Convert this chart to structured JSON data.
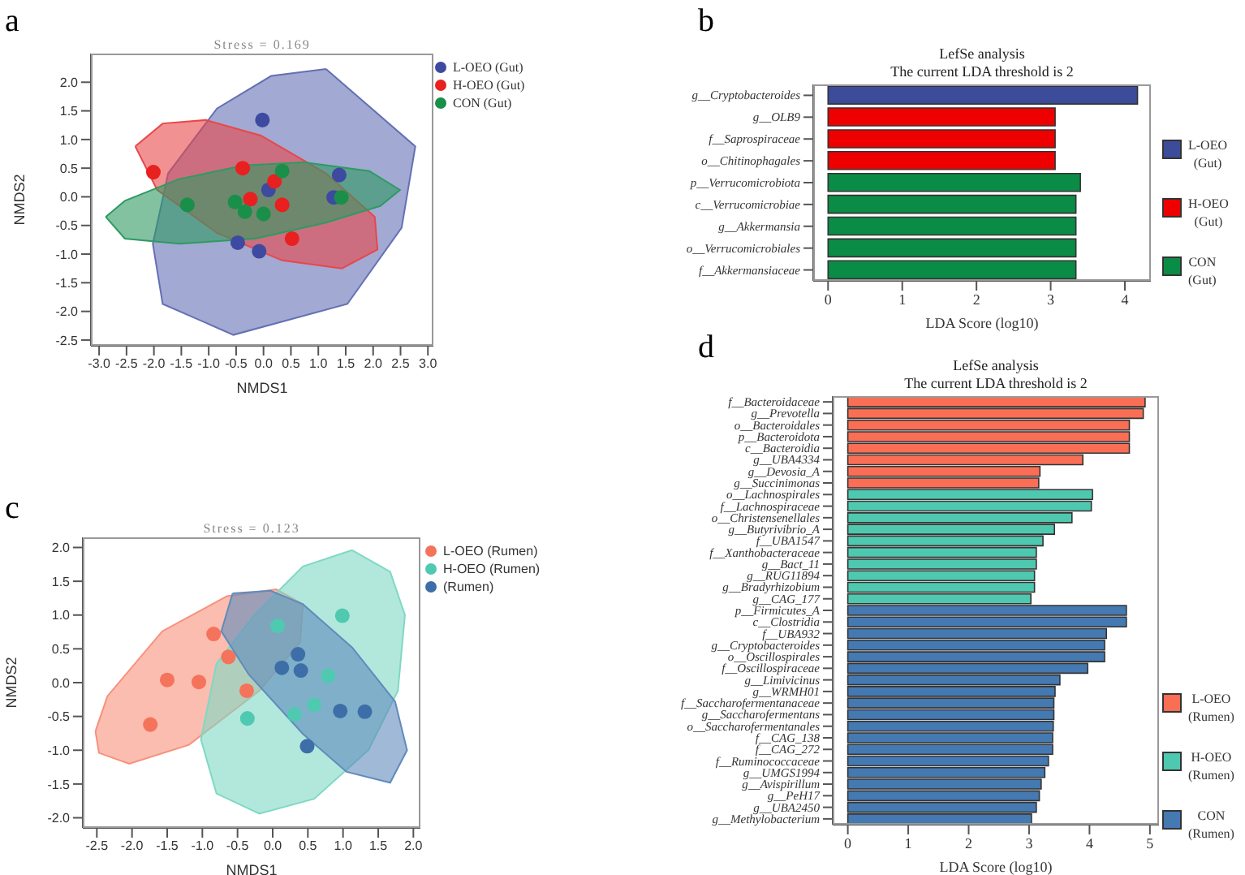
{
  "chart_data": [
    {
      "type": "scatter",
      "title": "Stress = 0.169",
      "xlabel": "NMDS1",
      "ylabel": "NMDS2",
      "annotations": [
        "a"
      ],
      "legend": "right",
      "marker": "circle",
      "xlim": [
        -3.15,
        3.1
      ],
      "xticks": [
        {
          "value": -3,
          "label": "-3.0"
        },
        {
          "value": -2.5,
          "label": "-2.5"
        },
        {
          "value": -2,
          "label": "-2.0"
        },
        {
          "value": -1.5,
          "label": "-1.5"
        },
        {
          "value": -1,
          "label": "-1.0"
        },
        {
          "value": -0.5,
          "label": "-0.5"
        },
        {
          "value": 0,
          "label": "0.0"
        },
        {
          "value": 0.5,
          "label": "0.5"
        },
        {
          "value": 1,
          "label": "1.0"
        },
        {
          "value": 1.5,
          "label": "1.5"
        },
        {
          "value": 2,
          "label": "2.0"
        },
        {
          "value": 2.5,
          "label": "2.5"
        },
        {
          "value": 3,
          "label": "3.0"
        }
      ],
      "ylim": [
        -2.6,
        2.5
      ],
      "yticks": [
        {
          "value": -2.5,
          "label": "-2.5"
        },
        {
          "value": -2,
          "label": "-2.0"
        },
        {
          "value": -1.5,
          "label": "-1.5"
        },
        {
          "value": -1,
          "label": "-1.0"
        },
        {
          "value": -0.5,
          "label": "-0.5"
        },
        {
          "value": 0,
          "label": "0.0"
        },
        {
          "value": 0.5,
          "label": "0.5"
        },
        {
          "value": 1,
          "label": "1.0"
        },
        {
          "value": 1.5,
          "label": "1.5"
        },
        {
          "value": 2,
          "label": "2.0"
        }
      ],
      "series": [
        {
          "type": "area",
          "marker": "none",
          "color": "#6470b4",
          "x": [
            1.14,
            2.77,
            2.52,
            1.53,
            -0.55,
            -1.84,
            -2.02,
            -1.74,
            -0.85,
            0.14,
            1.14
          ],
          "values": [
            2.23,
            0.88,
            -0.54,
            -1.87,
            -2.41,
            -1.87,
            -0.82,
            0.41,
            1.54,
            2.11,
            2.23
          ]
        },
        {
          "type": "area",
          "marker": "none",
          "color": "#e8474a",
          "x": [
            -2.34,
            -1.84,
            -1.05,
            -0.05,
            1.14,
            2.03,
            2.08,
            1.43,
            0.34,
            -0.85,
            -1.94,
            -2.34
          ],
          "values": [
            0.88,
            1.28,
            1.34,
            1.07,
            0.41,
            -0.35,
            -0.92,
            -1.25,
            -1.11,
            -0.63,
            0.12,
            0.88
          ]
        },
        {
          "type": "area",
          "marker": "none",
          "color": "#2e9a62",
          "x": [
            -2.88,
            -2.53,
            -1.54,
            -0.35,
            0.74,
            1.93,
            2.49,
            2.13,
            1.14,
            -0.15,
            -1.54,
            -2.53,
            -2.88
          ],
          "values": [
            -0.35,
            -0.07,
            0.31,
            0.55,
            0.6,
            0.45,
            0.12,
            -0.16,
            -0.45,
            -0.73,
            -0.82,
            -0.73,
            -0.35
          ]
        },
        {
          "name": "L-OEO (Gut)",
          "color": "#3d4aa0",
          "x": [
            -0.02,
            0.09,
            1.38,
            1.28,
            -0.47,
            -0.08
          ],
          "values": [
            1.34,
            0.12,
            0.38,
            -0.01,
            -0.8,
            -0.95
          ]
        },
        {
          "name": "H-OEO (Gut)",
          "color": "#e8201f",
          "x": [
            -2.01,
            -0.38,
            0.2,
            -0.24,
            0.34,
            0.52
          ],
          "values": [
            0.43,
            0.5,
            0.27,
            -0.04,
            -0.14,
            -0.73
          ]
        },
        {
          "name": "CON (Gut)",
          "color": "#1a8f4a",
          "x": [
            -1.39,
            -0.52,
            -0.34,
            0,
            0.34,
            1.42
          ],
          "values": [
            -0.14,
            -0.09,
            -0.26,
            -0.3,
            0.45,
            -0.01
          ]
        }
      ]
    },
    {
      "type": "bar",
      "orientation": "horizontal",
      "stacked": true,
      "title": "LefSe analysis",
      "subtitle": "The current LDA threshold is 2",
      "xlabel": "LDA Score (log10)",
      "annotations": [
        "b"
      ],
      "legend": "right",
      "categories": [
        "g__Cryptobacteroides",
        "g__OLB9",
        "f__Saprospiraceae",
        "o__Chitinophagales",
        "p__Verrucomicrobiota",
        "c__Verrucomicrobiae",
        "g__Akkermansia",
        "o__Verrucomicrobiales",
        "f__Akkermansiaceae"
      ],
      "xlim": [
        -0.2,
        4.35
      ],
      "xticks": [
        0,
        1,
        2,
        3,
        4
      ],
      "series": [
        {
          "name": "L-OEO (Gut)",
          "color": "#3c4b9a",
          "values": [
            4.17,
            null,
            null,
            null,
            null,
            null,
            null,
            null,
            null
          ]
        },
        {
          "name": "H-OEO (Gut)",
          "color": "#ee0000",
          "values": [
            null,
            3.06,
            3.06,
            3.06,
            null,
            null,
            null,
            null,
            null
          ]
        },
        {
          "name": "CON (Gut)",
          "color": "#0b8c46",
          "values": [
            null,
            null,
            null,
            null,
            3.4,
            3.34,
            3.34,
            3.34,
            3.34
          ]
        }
      ]
    },
    {
      "type": "scatter",
      "title": "Stress = 0.123",
      "xlabel": "NMDS1",
      "ylabel": "NMDS2",
      "annotations": [
        "c"
      ],
      "legend": "right",
      "marker": "circle",
      "xlim": [
        -2.7,
        2.1
      ],
      "xticks": [
        {
          "value": -2.5,
          "label": "-2.5"
        },
        {
          "value": -2,
          "label": "-2.0"
        },
        {
          "value": -1.5,
          "label": "-1.5"
        },
        {
          "value": -1,
          "label": "-1.0"
        },
        {
          "value": -0.5,
          "label": "-0.5"
        },
        {
          "value": 0,
          "label": "0.0"
        },
        {
          "value": 0.5,
          "label": "0.5"
        },
        {
          "value": 1,
          "label": "1.0"
        },
        {
          "value": 1.5,
          "label": "1.5"
        },
        {
          "value": 2,
          "label": "2.0"
        }
      ],
      "ylim": [
        -2.15,
        2.15
      ],
      "yticks": [
        {
          "value": -2,
          "label": "-2.0"
        },
        {
          "value": -1.5,
          "label": "-1.5"
        },
        {
          "value": -1,
          "label": "-1.0"
        },
        {
          "value": -0.5,
          "label": "-0.5"
        },
        {
          "value": 0,
          "label": "0.0"
        },
        {
          "value": 0.5,
          "label": "0.5"
        },
        {
          "value": 1,
          "label": "1.0"
        },
        {
          "value": 1.5,
          "label": "1.5"
        },
        {
          "value": 2,
          "label": "2.0"
        }
      ],
      "series": [
        {
          "type": "area",
          "marker": "none",
          "color": "#f6917c",
          "x": [
            -2.52,
            -2.35,
            -1.57,
            -0.65,
            0.05,
            0.43,
            0.39,
            -0.19,
            -1.19,
            -2.04,
            -2.47,
            -2.52
          ],
          "values": [
            -0.72,
            -0.2,
            0.76,
            1.28,
            1.38,
            1.16,
            0.6,
            -0.12,
            -0.92,
            -1.2,
            -1.04,
            -0.72
          ]
        },
        {
          "type": "area",
          "marker": "none",
          "color": "#7fd8c4",
          "x": [
            1.13,
            1.67,
            1.88,
            1.78,
            1.36,
            0.59,
            -0.19,
            -0.8,
            -1.02,
            -0.8,
            -0.26,
            0.43,
            1.13
          ],
          "values": [
            1.96,
            1.64,
            1,
            -0.12,
            -1,
            -1.72,
            -1.94,
            -1.64,
            -0.84,
            0.28,
            1,
            1.72,
            1.96
          ]
        },
        {
          "type": "area",
          "marker": "none",
          "color": "#5f8bbd",
          "x": [
            -0.57,
            -0.03,
            0.43,
            1.13,
            1.74,
            1.91,
            1.67,
            1.05,
            0.43,
            -0.34,
            -0.73,
            -0.57
          ],
          "values": [
            1.32,
            1.36,
            1.16,
            0.52,
            -0.28,
            -1,
            -1.48,
            -1.32,
            -0.76,
            0.12,
            0.76,
            1.32
          ]
        },
        {
          "name": "L-OEO (Rumen)",
          "color": "#f4735a",
          "x": [
            -1.74,
            -1.5,
            -1.05,
            -0.84,
            -0.63,
            -0.37
          ],
          "values": [
            -0.62,
            0.04,
            0.01,
            0.72,
            0.38,
            -0.12
          ]
        },
        {
          "name": "H-OEO (Rumen)",
          "color": "#4fc9b0",
          "x": [
            -0.36,
            0.07,
            0.31,
            0.59,
            0.79,
            0.99
          ],
          "values": [
            -0.53,
            0.84,
            -0.47,
            -0.33,
            0.1,
            0.99
          ]
        },
        {
          "name": "(Rumen)",
          "color": "#3e6ea8",
          "x": [
            0.13,
            0.36,
            0.4,
            0.49,
            0.96,
            1.31
          ],
          "values": [
            0.22,
            0.42,
            0.18,
            -0.94,
            -0.42,
            -0.43
          ]
        }
      ]
    },
    {
      "type": "bar",
      "orientation": "horizontal",
      "stacked": true,
      "title": "LefSe analysis",
      "subtitle": "The current LDA threshold is 2",
      "xlabel": "LDA Score (log10)",
      "annotations": [
        "d"
      ],
      "legend": "right",
      "categories": [
        "f__Bacteroidaceae",
        "g__Prevotella",
        "o__Bacteroidales",
        "p__Bacteroidota",
        "c__Bacteroidia",
        "g__UBA4334",
        "g__Devosia_A",
        "g__Succinimonas",
        "o__Lachnospirales",
        "f__Lachnospiraceae",
        "o__Christensenellales",
        "g__Butyrivibrio_A",
        "f__UBA1547",
        "f__Xanthobacteraceae",
        "g__Bact_11",
        "g__RUG11894",
        "g__Bradyrhizobium",
        "g__CAG_177",
        "p__Firmicutes_A",
        "c__Clostridia",
        "f__UBA932",
        "g__Cryptobacteroides",
        "o__Oscillospirales",
        "f__Oscillospiraceae",
        "g__Limivicinus",
        "g__WRMH01",
        "f__Saccharofermentanaceae",
        "g__Saccharofermentans",
        "o__Saccharofermentanales",
        "f__CAG_138",
        "f__CAG_272",
        "f__Ruminococcaceae",
        "g__UMGS1994",
        "g__Avispirillum",
        "g__PeH17",
        "g__UBA2450",
        "g__Methylobacterium"
      ],
      "xlim": [
        -0.25,
        5.15
      ],
      "xticks": [
        0,
        1,
        2,
        3,
        4,
        5
      ],
      "series": [
        {
          "name": "L-OEO (Rumen)",
          "color": "#fa6e55",
          "values": [
            4.92,
            4.89,
            4.66,
            4.66,
            4.66,
            3.89,
            3.18,
            3.16,
            null,
            null,
            null,
            null,
            null,
            null,
            null,
            null,
            null,
            null,
            null,
            null,
            null,
            null,
            null,
            null,
            null,
            null,
            null,
            null,
            null,
            null,
            null,
            null,
            null,
            null,
            null,
            null,
            null
          ]
        },
        {
          "name": "H-OEO (Rumen)",
          "color": "#4fc8b0",
          "values": [
            null,
            null,
            null,
            null,
            null,
            null,
            null,
            null,
            4.05,
            4.03,
            3.71,
            3.42,
            3.23,
            3.12,
            3.12,
            3.09,
            3.09,
            3.03,
            null,
            null,
            null,
            null,
            null,
            null,
            null,
            null,
            null,
            null,
            null,
            null,
            null,
            null,
            null,
            null,
            null,
            null,
            null
          ]
        },
        {
          "name": "CON (Rumen)",
          "color": "#4479b2",
          "values": [
            null,
            null,
            null,
            null,
            null,
            null,
            null,
            null,
            null,
            null,
            null,
            null,
            null,
            null,
            null,
            null,
            null,
            null,
            4.61,
            4.61,
            4.28,
            4.25,
            4.25,
            3.97,
            3.51,
            3.43,
            3.41,
            3.41,
            3.4,
            3.39,
            3.39,
            3.32,
            3.26,
            3.2,
            3.17,
            3.12,
            3.04
          ]
        }
      ]
    }
  ]
}
